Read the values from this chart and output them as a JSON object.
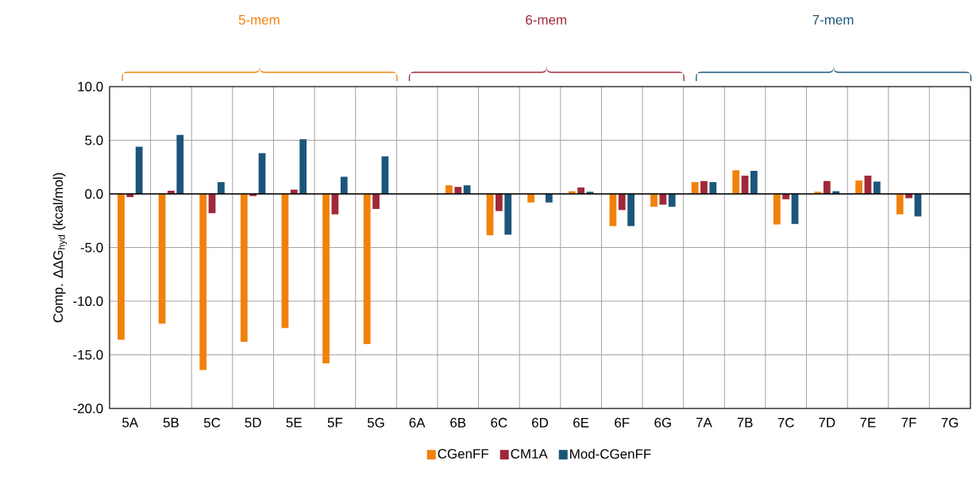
{
  "chart_data": {
    "type": "bar",
    "ylabel": "Comp. ΔΔG$_{hyd}$ (kcal/mol)",
    "categories": [
      "5A",
      "5B",
      "5C",
      "5D",
      "5E",
      "5F",
      "5G",
      "6A",
      "6B",
      "6C",
      "6D",
      "6E",
      "6F",
      "6G",
      "7A",
      "7B",
      "7C",
      "7D",
      "7E",
      "7F",
      "7G"
    ],
    "series": [
      {
        "name": "CGenFF",
        "color": "#f0820a",
        "values": [
          -13.6,
          -12.1,
          -16.4,
          -13.8,
          -12.5,
          -15.8,
          -14.0,
          null,
          0.8,
          -3.85,
          -0.8,
          0.25,
          -3.0,
          -1.2,
          1.1,
          2.2,
          -2.85,
          0.2,
          1.25,
          -1.9,
          null
        ]
      },
      {
        "name": "CM1A",
        "color": "#a0283a",
        "values": [
          -0.3,
          0.3,
          -1.8,
          -0.2,
          0.4,
          -1.9,
          -1.4,
          null,
          0.65,
          -1.6,
          null,
          0.6,
          -1.5,
          -1.0,
          1.2,
          1.7,
          -0.5,
          1.2,
          1.7,
          -0.4,
          null
        ]
      },
      {
        "name": "Mod-CGenFF",
        "color": "#1b567a",
        "values": [
          4.4,
          5.5,
          1.1,
          3.8,
          5.1,
          1.6,
          3.5,
          null,
          0.8,
          -3.8,
          -0.8,
          0.2,
          -3.0,
          -1.2,
          1.1,
          2.15,
          -2.8,
          0.25,
          1.15,
          -2.1,
          null
        ]
      }
    ],
    "ylim": [
      -20,
      10
    ],
    "yticks": [
      {
        "value": -20,
        "label": "-20.0"
      },
      {
        "value": -15,
        "label": "-15.0"
      },
      {
        "value": -10,
        "label": "-10.0"
      },
      {
        "value": -5,
        "label": "-5.0"
      },
      {
        "value": 0,
        "label": "0.0"
      },
      {
        "value": 5,
        "label": "5.0"
      },
      {
        "value": 10,
        "label": "10.0"
      }
    ],
    "grid": true,
    "legend": "bottom",
    "annotations": [
      "5-mem",
      "6-mem",
      "7-mem"
    ]
  }
}
